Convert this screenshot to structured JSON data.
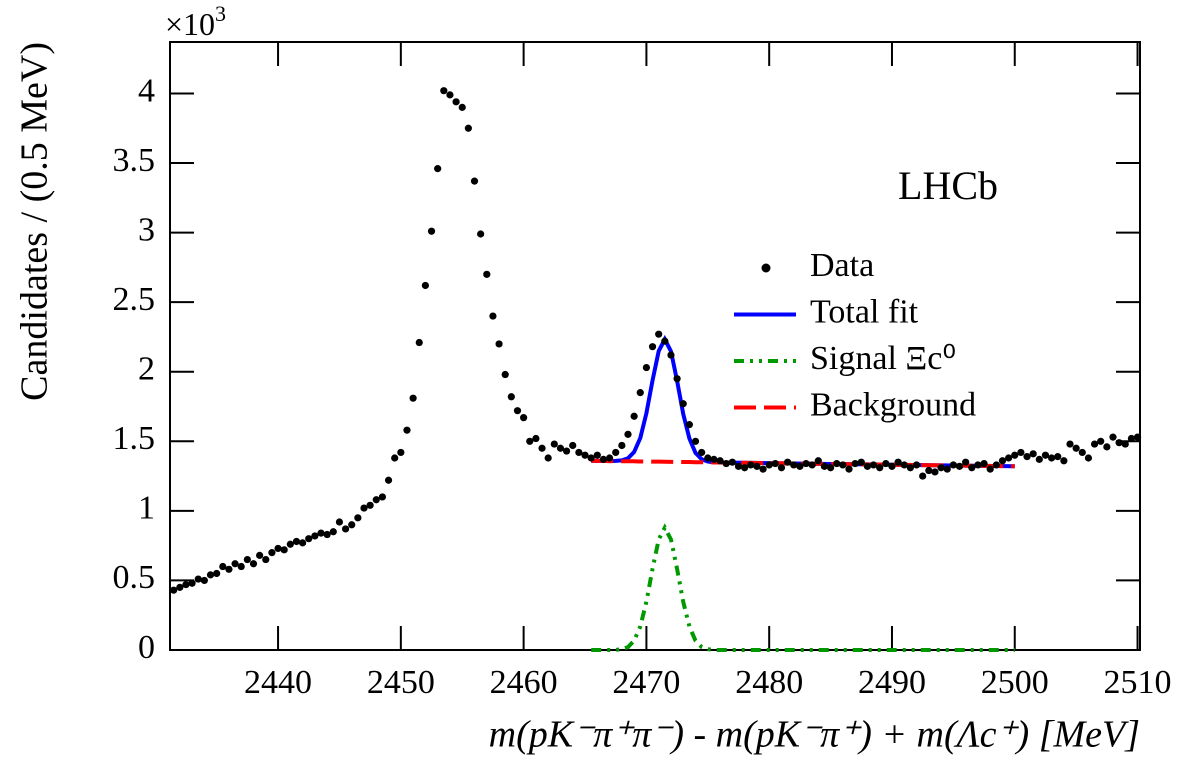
{
  "chart_data": {
    "type": "scatter",
    "ylabel": "Candidates / (0.5 MeV)",
    "y_multiplier": "×10",
    "y_multiplier_exp": "3",
    "xlabel": "m(pK⁻π⁺π⁻) - m(pK⁻π⁺) + m(Λc⁺) [MeV]",
    "annotation": "LHCb",
    "xlim": [
      2431.2,
      2510.2
    ],
    "ylim": [
      0,
      4.37
    ],
    "xticks": [
      2440,
      2450,
      2460,
      2470,
      2480,
      2490,
      2500,
      2510
    ],
    "yticks": [
      0,
      0.5,
      1,
      1.5,
      2,
      2.5,
      3,
      3.5,
      4
    ],
    "series": [
      {
        "name": "Data",
        "type": "scatter",
        "color": "#000000",
        "x": [
          2431.5,
          2432,
          2432.5,
          2433,
          2433.5,
          2434,
          2434.5,
          2435,
          2435.5,
          2436,
          2436.5,
          2437,
          2437.5,
          2438,
          2438.5,
          2439,
          2439.5,
          2440,
          2440.5,
          2441,
          2441.5,
          2442,
          2442.5,
          2443,
          2443.5,
          2444,
          2444.5,
          2445,
          2445.5,
          2446,
          2446.5,
          2447,
          2447.5,
          2448,
          2448.5,
          2449,
          2449.5,
          2450,
          2450.5,
          2451,
          2451.5,
          2452,
          2452.5,
          2453,
          2453.5,
          2454,
          2454.5,
          2455,
          2455.5,
          2456,
          2456.5,
          2457,
          2457.5,
          2458,
          2458.5,
          2459,
          2459.5,
          2460,
          2460.5,
          2461,
          2461.5,
          2462,
          2462.5,
          2463,
          2463.5,
          2464,
          2464.5,
          2465,
          2465.5,
          2466,
          2466.5,
          2467,
          2467.5,
          2468,
          2468.5,
          2469,
          2469.5,
          2470,
          2470.5,
          2471,
          2471.5,
          2472,
          2472.5,
          2473,
          2473.5,
          2474,
          2474.5,
          2475,
          2475.5,
          2476,
          2476.5,
          2477,
          2477.5,
          2478,
          2478.5,
          2479,
          2479.5,
          2480,
          2480.5,
          2481,
          2481.5,
          2482,
          2482.5,
          2483,
          2483.5,
          2484,
          2484.5,
          2485,
          2485.5,
          2486,
          2486.5,
          2487,
          2487.5,
          2488,
          2488.5,
          2489,
          2489.5,
          2490,
          2490.5,
          2491,
          2491.5,
          2492,
          2492.5,
          2493,
          2493.5,
          2494,
          2494.5,
          2495,
          2495.5,
          2496,
          2496.5,
          2497,
          2497.5,
          2498,
          2498.5,
          2499,
          2499.5,
          2500,
          2500.5,
          2501,
          2501.5,
          2502,
          2502.5,
          2503,
          2503.5,
          2504,
          2504.5,
          2505,
          2505.5,
          2506,
          2506.5,
          2507,
          2507.5,
          2508,
          2508.5,
          2509,
          2509.5,
          2510
        ],
        "values": [
          0.43,
          0.45,
          0.47,
          0.48,
          0.51,
          0.5,
          0.54,
          0.55,
          0.6,
          0.58,
          0.62,
          0.6,
          0.65,
          0.62,
          0.68,
          0.65,
          0.7,
          0.73,
          0.72,
          0.76,
          0.78,
          0.77,
          0.8,
          0.82,
          0.84,
          0.83,
          0.85,
          0.92,
          0.87,
          0.9,
          0.95,
          1.02,
          1.04,
          1.08,
          1.1,
          1.22,
          1.38,
          1.42,
          1.58,
          1.81,
          2.21,
          2.62,
          3.01,
          3.46,
          4.02,
          3.99,
          3.94,
          3.9,
          3.75,
          3.37,
          2.99,
          2.7,
          2.4,
          2.2,
          1.98,
          1.82,
          1.72,
          1.67,
          1.5,
          1.52,
          1.45,
          1.38,
          1.48,
          1.45,
          1.43,
          1.47,
          1.42,
          1.4,
          1.38,
          1.4,
          1.37,
          1.38,
          1.42,
          1.47,
          1.55,
          1.68,
          1.85,
          2.03,
          2.18,
          2.27,
          2.22,
          2.12,
          1.95,
          1.77,
          1.62,
          1.5,
          1.42,
          1.38,
          1.37,
          1.36,
          1.34,
          1.35,
          1.32,
          1.31,
          1.33,
          1.32,
          1.3,
          1.33,
          1.34,
          1.31,
          1.35,
          1.33,
          1.32,
          1.34,
          1.33,
          1.36,
          1.32,
          1.31,
          1.34,
          1.33,
          1.3,
          1.34,
          1.35,
          1.32,
          1.33,
          1.31,
          1.34,
          1.32,
          1.35,
          1.33,
          1.31,
          1.33,
          1.25,
          1.29,
          1.28,
          1.31,
          1.3,
          1.33,
          1.32,
          1.35,
          1.31,
          1.33,
          1.34,
          1.3,
          1.33,
          1.36,
          1.38,
          1.4,
          1.42,
          1.39,
          1.41,
          1.37,
          1.4,
          1.38,
          1.39,
          1.36,
          1.48,
          1.45,
          1.42,
          1.38,
          1.48,
          1.5,
          1.46,
          1.53,
          1.49,
          1.48,
          1.52,
          1.53
        ]
      },
      {
        "name": "Total fit",
        "type": "line",
        "dash": "solid",
        "color": "#0000ff",
        "x": [
          2465.5,
          2466,
          2466.5,
          2467,
          2467.5,
          2468,
          2468.5,
          2469,
          2469.5,
          2470,
          2470.5,
          2471,
          2471.5,
          2472,
          2472.5,
          2473,
          2473.5,
          2474,
          2474.5,
          2475,
          2475.5,
          2476,
          2476.5,
          2477,
          2480,
          2485,
          2490,
          2495,
          2500
        ],
        "values": [
          1.36,
          1.359,
          1.359,
          1.358,
          1.359,
          1.363,
          1.378,
          1.423,
          1.524,
          1.702,
          1.936,
          2.148,
          2.233,
          2.146,
          1.934,
          1.698,
          1.52,
          1.417,
          1.371,
          1.355,
          1.349,
          1.348,
          1.347,
          1.347,
          1.343,
          1.337,
          1.332,
          1.326,
          1.32
        ]
      },
      {
        "name": "Signal  Ξc⁰",
        "type": "line",
        "dash": "dashdotdot",
        "color": "#009900",
        "x": [
          2465.5,
          2466,
          2466.5,
          2467,
          2467.5,
          2468,
          2468.5,
          2469,
          2469.5,
          2470,
          2470.5,
          2471,
          2471.5,
          2472,
          2472.5,
          2473,
          2473.5,
          2474,
          2474.5,
          2475,
          2475.5,
          2476,
          2476.5,
          2477,
          2480,
          2485,
          2490,
          2495,
          2500
        ],
        "values": [
          0,
          0,
          0,
          0,
          0.001,
          0.006,
          0.021,
          0.067,
          0.169,
          0.347,
          0.582,
          0.794,
          0.88,
          0.794,
          0.582,
          0.347,
          0.169,
          0.067,
          0.021,
          0.006,
          0.001,
          0,
          0,
          0,
          0,
          0,
          0,
          0,
          0
        ]
      },
      {
        "name": "Background",
        "type": "line",
        "dash": "dashed",
        "color": "#ff0000",
        "x": [
          2465.5,
          2466,
          2466.5,
          2467,
          2467.5,
          2468,
          2468.5,
          2469,
          2469.5,
          2470,
          2470.5,
          2471,
          2471.5,
          2472,
          2472.5,
          2473,
          2473.5,
          2474,
          2474.5,
          2475,
          2475.5,
          2476,
          2476.5,
          2477,
          2480,
          2485,
          2490,
          2495,
          2500
        ],
        "values": [
          1.36,
          1.359,
          1.359,
          1.358,
          1.358,
          1.357,
          1.357,
          1.356,
          1.355,
          1.355,
          1.354,
          1.354,
          1.353,
          1.352,
          1.352,
          1.351,
          1.351,
          1.35,
          1.35,
          1.349,
          1.348,
          1.348,
          1.347,
          1.347,
          1.343,
          1.337,
          1.332,
          1.326,
          1.32
        ]
      }
    ]
  }
}
